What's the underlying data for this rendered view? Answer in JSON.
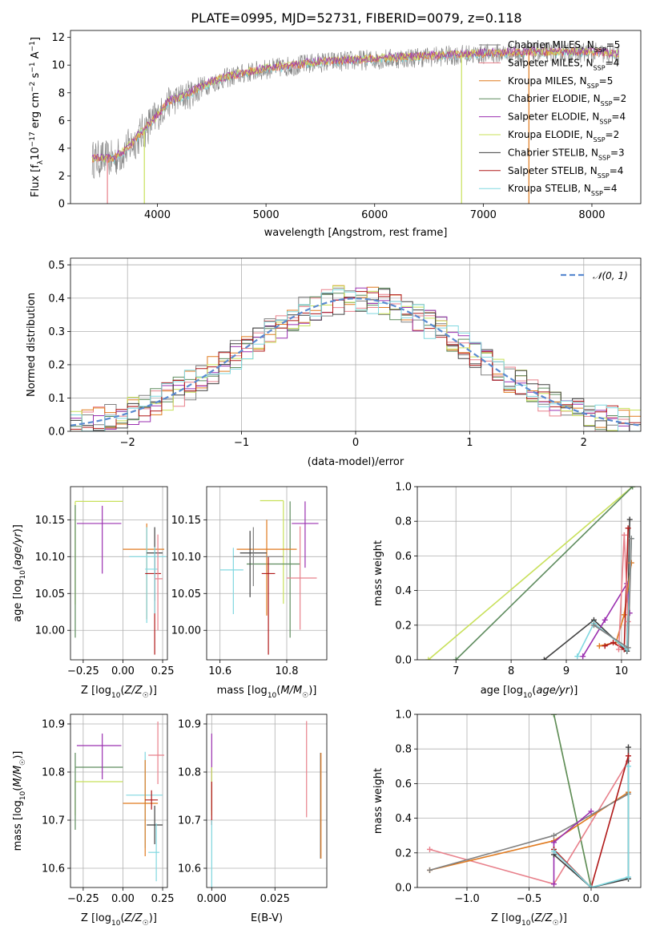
{
  "figure_title": "PLATE=0995, MJD=52731, FIBERID=0079, z=0.118",
  "colors": {
    "data": "#808080",
    "Chabrier MILES": "#808080",
    "Salpeter MILES": "#e8808b",
    "Kroupa MILES": "#e07a1f",
    "Chabrier ELODIE": "#5e8c5e",
    "Salpeter ELODIE": "#9b30b0",
    "Kroupa ELODIE": "#c8e05a",
    "Chabrier STELIB": "#404040",
    "Salpeter STELIB": "#b01818",
    "Kroupa STELIB": "#80d8e0",
    "gaussian": "#5a8ad0"
  },
  "chart_data": [
    {
      "id": "spectrum",
      "type": "line",
      "xlabel": "wavelength [Angstrom, rest frame]",
      "ylabel": "Flux [f_λ10^-17 erg cm^-2 s^-1 A^-1]",
      "xlim": [
        3200,
        8450
      ],
      "ylim": [
        0,
        12.5
      ],
      "xticks": [
        "4000",
        "5000",
        "6000",
        "7000",
        "8000"
      ],
      "yticks": [
        "0",
        "2",
        "4",
        "6",
        "8",
        "10",
        "12"
      ],
      "grid": false,
      "legend_position": "top-right",
      "legend": [
        "Chabrier MILES, N_SSP=5",
        "Salpeter MILES, N_SSP=4",
        "Kroupa MILES, N_SSP=5",
        "Chabrier ELODIE, N_SSP=2",
        "Salpeter ELODIE, N_SSP=4",
        "Kroupa ELODIE, N_SSP=2",
        "Chabrier STELIB, N_SSP=3",
        "Salpeter STELIB, N_SSP=4",
        "Kroupa STELIB, N_SSP=4"
      ],
      "continuum": {
        "x": [
          3400,
          3600,
          3700,
          3800,
          3900,
          4000,
          4100,
          4200,
          4300,
          4400,
          4600,
          4800,
          5000,
          5200,
          5500,
          6000,
          6500,
          7000,
          7500,
          8000,
          8250
        ],
        "y": [
          3.2,
          3.2,
          3.8,
          4.6,
          5.5,
          6.3,
          7.3,
          7.6,
          7.9,
          8.4,
          9.0,
          9.4,
          9.7,
          9.9,
          10.2,
          10.4,
          10.6,
          10.8,
          10.9,
          10.9,
          10.7
        ]
      }
    },
    {
      "id": "residual_histogram",
      "type": "histogram",
      "xlabel": "(data-model)/error",
      "ylabel": "Normed distribution",
      "xlim": [
        -2.5,
        2.5
      ],
      "ylim": [
        0,
        0.52
      ],
      "xticks": [
        "−2",
        "−1",
        "0",
        "1",
        "2"
      ],
      "yticks": [
        "0.0",
        "0.1",
        "0.2",
        "0.3",
        "0.4",
        "0.5"
      ],
      "grid": true,
      "legend_position": "top-right",
      "legend": [
        "𝒩(0, 1)"
      ],
      "bin_width": 0.1
    },
    {
      "id": "age_vs_Z",
      "type": "errorbar",
      "xlabel": "Z [log10(Z/Z☉)]",
      "ylabel": "age [log10(age/yr)]",
      "xlim": [
        -0.33,
        0.28
      ],
      "ylim": [
        9.96,
        10.195
      ],
      "xticks": [
        "−0.25",
        "0.00",
        "0.25"
      ],
      "yticks": [
        "10.00",
        "10.05",
        "10.10",
        "10.15"
      ],
      "grid": true,
      "points": [
        {
          "model": "Kroupa ELODIE",
          "x": -0.3,
          "y": 10.175,
          "xerr": [
            0.0,
            0.3
          ],
          "yerr": [
            0.14,
            0.0
          ]
        },
        {
          "model": "Chabrier ELODIE",
          "x": -0.3,
          "y": 10.09,
          "xerr": [
            0.0,
            0.0
          ],
          "yerr": [
            0.1,
            0.08
          ]
        },
        {
          "model": "Salpeter ELODIE",
          "x": -0.13,
          "y": 10.145,
          "xerr": [
            0.16,
            0.12
          ],
          "yerr": [
            0.068,
            0.024
          ]
        },
        {
          "model": "Kroupa MILES",
          "x": 0.15,
          "y": 10.11,
          "xerr": [
            0.15,
            0.11
          ],
          "yerr": [
            0.095,
            0.035
          ]
        },
        {
          "model": "Kroupa STELIB",
          "x": 0.15,
          "y": 10.1,
          "xerr": [
            0.11,
            0.12
          ],
          "yerr": [
            0.09,
            0.04
          ]
        },
        {
          "model": "Chabrier STELIB",
          "x": 0.2,
          "y": 10.105,
          "xerr": [
            0.05,
            0.05
          ],
          "yerr": [
            0.065,
            0.035
          ]
        },
        {
          "model": "Salpeter STELIB",
          "x": 0.2,
          "y": 10.077,
          "xerr": [
            0.06,
            0.04
          ],
          "yerr": [
            0.11,
            0.023
          ]
        },
        {
          "model": "Kroupa STELIB",
          "x": 0.2,
          "y": 10.083,
          "xerr": [
            0.06,
            0.02
          ],
          "yerr": [
            0.06,
            0.03
          ]
        },
        {
          "model": "Salpeter MILES",
          "x": 0.22,
          "y": 10.07,
          "xerr": [
            0.02,
            0.03
          ],
          "yerr": [
            0.07,
            0.06
          ]
        }
      ]
    },
    {
      "id": "age_vs_mass",
      "type": "errorbar",
      "xlabel": "mass [log10(M/M☉)]",
      "ylabel": "",
      "xlim": [
        10.56,
        10.92
      ],
      "ylim": [
        9.96,
        10.195
      ],
      "xticks": [
        "10.6",
        "10.8"
      ],
      "yticks": [
        "10.00",
        "10.05",
        "10.10",
        "10.15"
      ],
      "grid": true,
      "points": [
        {
          "model": "Kroupa ELODIE",
          "x": 10.79,
          "y": 10.176,
          "xerr": [
            0.07,
            0.0
          ],
          "yerr": [
            0.14,
            0.0
          ]
        },
        {
          "model": "Chabrier ELODIE",
          "x": 10.81,
          "y": 10.09,
          "xerr": [
            0.13,
            0.03
          ],
          "yerr": [
            0.1,
            0.085
          ]
        },
        {
          "model": "Salpeter ELODIE",
          "x": 10.855,
          "y": 10.145,
          "xerr": [
            0.04,
            0.04
          ],
          "yerr": [
            0.06,
            0.03
          ]
        },
        {
          "model": "Kroupa MILES",
          "x": 10.74,
          "y": 10.11,
          "xerr": [
            0.09,
            0.09
          ],
          "yerr": [
            0.09,
            0.04
          ]
        },
        {
          "model": "Chabrier STELIB",
          "x": 10.69,
          "y": 10.105,
          "xerr": [
            0.03,
            0.05
          ],
          "yerr": [
            0.06,
            0.03
          ]
        },
        {
          "model": "Salpeter STELIB",
          "x": 10.745,
          "y": 10.077,
          "xerr": [
            0.02,
            0.02
          ],
          "yerr": [
            0.11,
            0.023
          ]
        },
        {
          "model": "Kroupa STELIB",
          "x": 10.64,
          "y": 10.082,
          "xerr": [
            0.04,
            0.03
          ],
          "yerr": [
            0.06,
            0.03
          ]
        },
        {
          "model": "Salpeter MILES",
          "x": 10.84,
          "y": 10.071,
          "xerr": [
            0.04,
            0.05
          ],
          "yerr": [
            0.07,
            0.07
          ]
        },
        {
          "model": "Chabrier MILES",
          "x": 10.7,
          "y": 10.1,
          "xerr": [
            0.06,
            0.09
          ],
          "yerr": [
            0.04,
            0.04
          ]
        }
      ]
    },
    {
      "id": "massweight_vs_age",
      "type": "line",
      "xlabel": "age [log10(age/yr)]",
      "ylabel": "mass weight",
      "xlim": [
        6.3,
        10.35
      ],
      "ylim": [
        0,
        1.0
      ],
      "xticks": [
        "7",
        "8",
        "9",
        "10"
      ],
      "yticks": [
        "0.0",
        "0.2",
        "0.4",
        "0.6",
        "0.8",
        "1.0"
      ],
      "grid": true,
      "series": [
        {
          "model": "Kroupa ELODIE",
          "x": [
            6.5,
            10.2
          ],
          "y": [
            0.0,
            1.0
          ]
        },
        {
          "model": "Chabrier ELODIE",
          "x": [
            7.0,
            10.2
          ],
          "y": [
            0.0,
            1.0
          ]
        },
        {
          "model": "Chabrier STELIB",
          "x": [
            8.6,
            9.5,
            10.1,
            10.15
          ],
          "y": [
            0.0,
            0.23,
            0.05,
            0.81
          ]
        },
        {
          "model": "Salpeter ELODIE",
          "x": [
            9.3,
            9.7,
            10.1,
            10.15
          ],
          "y": [
            0.02,
            0.23,
            0.44,
            0.27
          ]
        },
        {
          "model": "Kroupa MILES",
          "x": [
            9.6,
            9.9,
            10.05,
            10.18
          ],
          "y": [
            0.08,
            0.1,
            0.26,
            0.56
          ]
        },
        {
          "model": "Salpeter STELIB",
          "x": [
            9.7,
            9.85,
            10.05,
            10.12
          ],
          "y": [
            0.08,
            0.1,
            0.06,
            0.76
          ]
        },
        {
          "model": "Salpeter MILES",
          "x": [
            9.95,
            10.05,
            10.12
          ],
          "y": [
            0.06,
            0.72,
            0.22
          ]
        },
        {
          "model": "Kroupa STELIB",
          "x": [
            9.2,
            9.5,
            10.1,
            10.18
          ],
          "y": [
            0.02,
            0.21,
            0.06,
            0.7
          ]
        },
        {
          "model": "Chabrier MILES",
          "x": [
            9.5,
            10.12,
            10.18
          ],
          "y": [
            0.2,
            0.07,
            0.7
          ]
        }
      ]
    },
    {
      "id": "mass_vs_Z",
      "type": "errorbar",
      "xlabel": "Z [log10(Z/Z☉)]",
      "ylabel": "mass [log10(M/M☉)]",
      "xlim": [
        -0.33,
        0.28
      ],
      "ylim": [
        10.56,
        10.92
      ],
      "xticks": [
        "−0.25",
        "0.00",
        "0.25"
      ],
      "yticks": [
        "10.6",
        "10.7",
        "10.8",
        "10.9"
      ],
      "grid": true,
      "points": [
        {
          "model": "Kroupa ELODIE",
          "x": -0.3,
          "y": 10.78,
          "xerr": [
            0.0,
            0.3
          ],
          "yerr": [
            0.07,
            0.0
          ]
        },
        {
          "model": "Chabrier ELODIE",
          "x": -0.3,
          "y": 10.81,
          "xerr": [
            0.0,
            0.3
          ],
          "yerr": [
            0.13,
            0.03
          ]
        },
        {
          "model": "Salpeter ELODIE",
          "x": -0.13,
          "y": 10.855,
          "xerr": [
            0.16,
            0.12
          ],
          "yerr": [
            0.07,
            0.025
          ]
        },
        {
          "model": "Kroupa STELIB",
          "x": 0.14,
          "y": 10.752,
          "xerr": [
            0.12,
            0.11
          ],
          "yerr": [
            0.11,
            0.09
          ]
        },
        {
          "model": "Kroupa MILES",
          "x": 0.14,
          "y": 10.735,
          "xerr": [
            0.14,
            0.08
          ],
          "yerr": [
            0.11,
            0.09
          ]
        },
        {
          "model": "Salpeter STELIB",
          "x": 0.18,
          "y": 10.742,
          "xerr": [
            0.04,
            0.04
          ],
          "yerr": [
            0.02,
            0.02
          ]
        },
        {
          "model": "Chabrier STELIB",
          "x": 0.2,
          "y": 10.69,
          "xerr": [
            0.05,
            0.05
          ],
          "yerr": [
            0.04,
            0.04
          ]
        },
        {
          "model": "Salpeter MILES",
          "x": 0.22,
          "y": 10.835,
          "xerr": [
            0.06,
            0.04
          ],
          "yerr": [
            0.06,
            0.07
          ]
        },
        {
          "model": "Kroupa STELIB",
          "x": 0.21,
          "y": 10.633,
          "xerr": [
            0.05,
            0.02
          ],
          "yerr": [
            0.06,
            0.06
          ]
        }
      ]
    },
    {
      "id": "mass_vs_EBV",
      "type": "errorbar",
      "xlabel": "E(B-V)",
      "ylabel": "",
      "xlim": [
        -0.002,
        0.0455
      ],
      "ylim": [
        10.56,
        10.92
      ],
      "xticks": [
        "0.000",
        "0.025"
      ],
      "yticks": [
        "10.6",
        "10.7",
        "10.8",
        "10.9"
      ],
      "grid": true,
      "points": [
        {
          "model": "Salpeter ELODIE",
          "x": 0.0,
          "y": 10.8,
          "xerr": [
            0.0,
            0.0
          ],
          "yerr": [
            0.08,
            0.08
          ]
        },
        {
          "model": "Kroupa ELODIE",
          "x": 0.0,
          "y": 10.78,
          "xerr": [
            0.0,
            0.0
          ],
          "yerr": [
            0.07,
            0.03
          ]
        },
        {
          "model": "Salpeter STELIB",
          "x": 0.0,
          "y": 10.74,
          "xerr": [
            0.0,
            0.0
          ],
          "yerr": [
            0.05,
            0.04
          ]
        },
        {
          "model": "Kroupa STELIB",
          "x": 0.0,
          "y": 10.64,
          "xerr": [
            0.0,
            0.0
          ],
          "yerr": [
            0.08,
            0.06
          ]
        },
        {
          "model": "Salpeter MILES",
          "x": 0.0375,
          "y": 10.806,
          "xerr": [
            0.0,
            0.0
          ],
          "yerr": [
            0.1,
            0.1
          ]
        },
        {
          "model": "Chabrier MILES",
          "x": 0.043,
          "y": 10.73,
          "xerr": [
            0.0,
            0.0
          ],
          "yerr": [
            0.11,
            0.11
          ]
        },
        {
          "model": "Kroupa MILES",
          "x": 0.0432,
          "y": 10.73,
          "xerr": [
            0.0,
            0.0
          ],
          "yerr": [
            0.11,
            0.11
          ]
        }
      ]
    },
    {
      "id": "massweight_vs_Z",
      "type": "line",
      "xlabel": "Z [log10(Z/Z☉)]",
      "ylabel": "mass weight",
      "xlim": [
        -1.4,
        0.4
      ],
      "ylim": [
        0,
        1.0
      ],
      "xticks": [
        "−1.0",
        "−0.5",
        "0.0"
      ],
      "yticks": [
        "0.0",
        "0.2",
        "0.4",
        "0.6",
        "0.8",
        "1.0"
      ],
      "grid": true,
      "series": [
        {
          "model": "Kroupa ELODIE",
          "x": [
            -0.3,
            0.0
          ],
          "y": [
            1.0,
            0.0
          ]
        },
        {
          "model": "Chabrier ELODIE",
          "x": [
            -0.3,
            0.0
          ],
          "y": [
            1.0,
            0.0
          ]
        },
        {
          "model": "Salpeter MILES",
          "x": [
            -1.3,
            -0.3,
            0.3
          ],
          "y": [
            0.22,
            0.02,
            0.73
          ]
        },
        {
          "model": "Kroupa MILES",
          "x": [
            -1.3,
            -0.3,
            0.3
          ],
          "y": [
            0.1,
            0.27,
            0.55
          ]
        },
        {
          "model": "Chabrier MILES",
          "x": [
            -1.3,
            -0.3,
            0.3
          ],
          "y": [
            0.1,
            0.3,
            0.54
          ]
        },
        {
          "model": "Salpeter ELODIE",
          "x": [
            -0.3,
            -0.3,
            0.0
          ],
          "y": [
            0.02,
            0.26,
            0.44
          ]
        },
        {
          "model": "Chabrier STELIB",
          "x": [
            -0.3,
            0.0,
            0.3,
            0.3
          ],
          "y": [
            0.19,
            0.0,
            0.05,
            0.81
          ]
        },
        {
          "model": "Salpeter STELIB",
          "x": [
            -0.3,
            0.0,
            0.3
          ],
          "y": [
            0.22,
            0.0,
            0.76
          ]
        },
        {
          "model": "Kroupa STELIB",
          "x": [
            -0.3,
            0.0,
            0.3,
            0.3
          ],
          "y": [
            0.21,
            0.0,
            0.06,
            0.7
          ]
        }
      ]
    }
  ]
}
